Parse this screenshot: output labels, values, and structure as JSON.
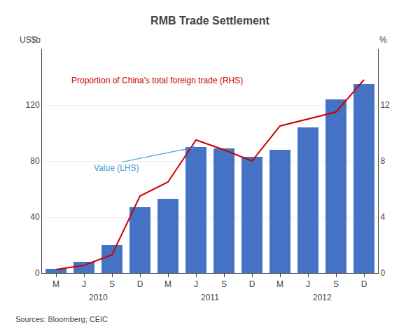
{
  "chart_data": {
    "type": "bar",
    "title": "RMB Trade Settlement",
    "categories": [
      "M",
      "J",
      "S",
      "D",
      "M",
      "J",
      "S",
      "D",
      "M",
      "J",
      "S",
      "D"
    ],
    "group_labels": [
      {
        "text": "2010",
        "x": 1.5
      },
      {
        "text": "2011",
        "x": 5.5
      },
      {
        "text": "2012",
        "x": 9.5
      }
    ],
    "series": [
      {
        "type": "bar",
        "color": "#4472C4",
        "values": [
          3,
          8,
          20,
          47,
          53,
          90,
          89,
          83,
          88,
          104,
          124,
          135
        ]
      },
      {
        "type": "line",
        "color": "#CC0000",
        "axis": "y2",
        "values": [
          0.25,
          0.55,
          1.3,
          5.5,
          6.5,
          9.5,
          8.8,
          8.0,
          10.5,
          11.0,
          11.5,
          13.8
        ]
      }
    ],
    "y_label": "US$b",
    "y2_label": "%",
    "ylim": [
      0,
      160
    ],
    "yticks": [
      0,
      40,
      80,
      120
    ],
    "y2lim": [
      0,
      16
    ],
    "y2ticks": [
      0,
      4,
      8,
      12
    ],
    "grid": true,
    "annotations": [
      {
        "text": "Value (LHS)",
        "x": 5,
        "y": 90,
        "color": "#4499CC"
      },
      {
        "text": "Proportion of China’s total foreign trade (RHS)",
        "color": "#CC0000"
      }
    ],
    "source": "Sources: Bloomberg; CEIC"
  }
}
